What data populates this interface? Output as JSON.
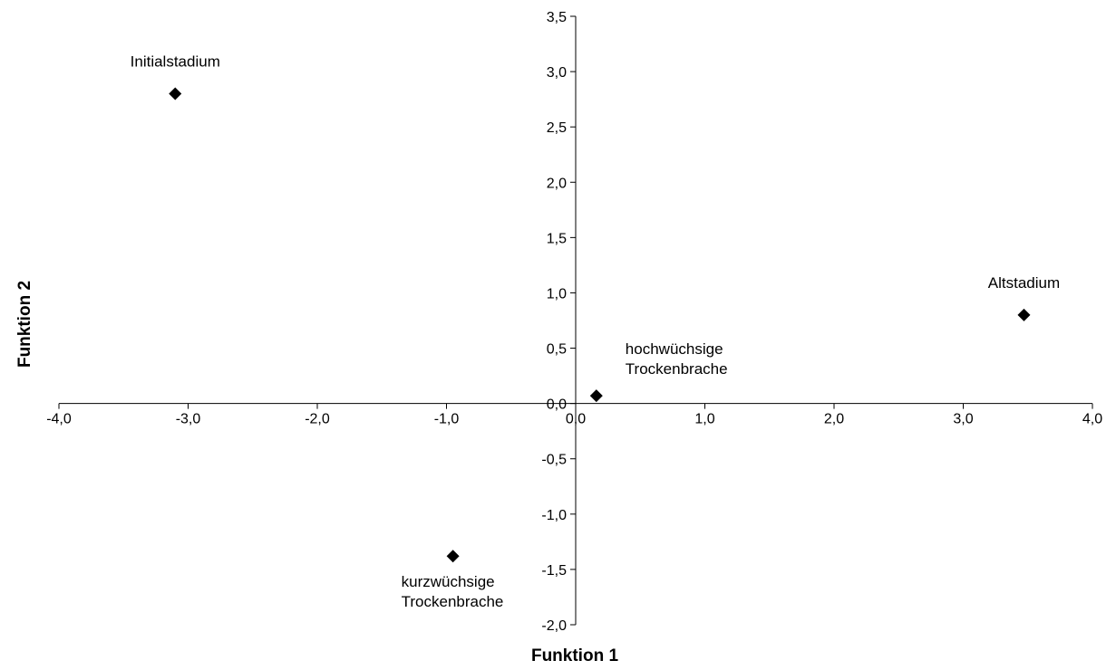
{
  "chart_data": {
    "type": "scatter",
    "xlabel": "Funktion 1",
    "ylabel": "Funktion 2",
    "xlim": [
      -4.0,
      4.0
    ],
    "ylim": [
      -2.0,
      3.5
    ],
    "x_ticks": [
      "-4,0",
      "-3,0",
      "-2,0",
      "-1,0",
      "0,0",
      "1,0",
      "2,0",
      "3,0",
      "4,0"
    ],
    "y_ticks": [
      "-2,0",
      "-1,5",
      "-1,0",
      "-0,5",
      "0,0",
      "0,5",
      "1,0",
      "1,5",
      "2,0",
      "2,5",
      "3,0",
      "3,5"
    ],
    "grid": false,
    "marker": "diamond",
    "marker_color": "#000000",
    "points": [
      {
        "label": [
          "Initialstadium"
        ],
        "x": -3.1,
        "y": 2.8,
        "label_pos": "above"
      },
      {
        "label": [
          "Altstadium"
        ],
        "x": 3.47,
        "y": 0.8,
        "label_pos": "above"
      },
      {
        "label": [
          "hochwüchsige",
          "Trockenbrache"
        ],
        "x": 0.16,
        "y": 0.07,
        "label_pos": "above-right"
      },
      {
        "label": [
          "kurzwüchsige",
          "Trockenbrache"
        ],
        "x": -0.95,
        "y": -1.38,
        "label_pos": "below"
      }
    ]
  }
}
